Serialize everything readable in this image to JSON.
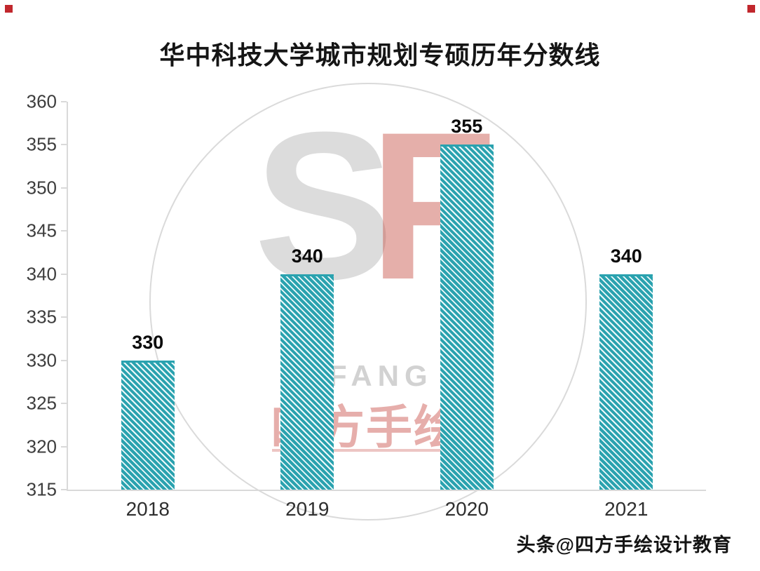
{
  "accents": {
    "corner_red": "#c1272d"
  },
  "chart_data": {
    "type": "bar",
    "title": "华中科技大学城市规划专硕历年分数线",
    "categories": [
      "2018",
      "2019",
      "2020",
      "2021"
    ],
    "values": [
      330,
      340,
      355,
      340
    ],
    "ylim": [
      315,
      360
    ],
    "yticks": [
      360,
      355,
      350,
      345,
      340,
      335,
      330,
      325,
      320,
      315
    ],
    "xlabel": "",
    "ylabel": "",
    "grid": false,
    "legend_position": "none",
    "bar_color": "#2aa2af",
    "bar_style": "diagonal-hatch"
  },
  "watermark": {
    "monogram_s": "S",
    "monogram_f": "F",
    "brand_latin": "SIFANG",
    "brand_cn": "四方手绘"
  },
  "footer": {
    "credit": "头条@四方手绘设计教育"
  }
}
